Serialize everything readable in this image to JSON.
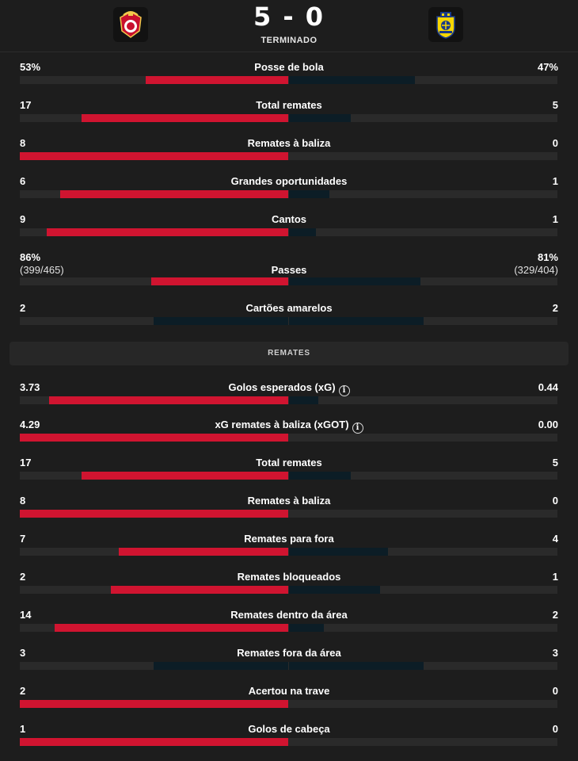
{
  "match": {
    "score": "5 - 0",
    "status": "TERMINADO",
    "home_crest_icon": "benfica-crest-icon",
    "away_crest_icon": "arouca-crest-icon"
  },
  "colors": {
    "home": "#d01430",
    "away": "#0c1d26",
    "track": "#2a2a2a"
  },
  "stats": [
    {
      "name": "Posse de bola",
      "home": "53%",
      "away": "47%",
      "home_share": 0.53,
      "away_share": 0.47
    },
    {
      "name": "Total remates",
      "home": "17",
      "away": "5",
      "home_share": 0.77,
      "away_share": 0.23
    },
    {
      "name": "Remates à baliza",
      "home": "8",
      "away": "0",
      "home_share": 1.0,
      "away_share": 0.0
    },
    {
      "name": "Grandes oportunidades",
      "home": "6",
      "away": "1",
      "home_share": 0.85,
      "away_share": 0.15
    },
    {
      "name": "Cantos",
      "home": "9",
      "away": "1",
      "home_share": 0.9,
      "away_share": 0.1
    },
    {
      "name": "Passes",
      "home": "86%",
      "away": "81%",
      "home_sub": "(399/465)",
      "away_sub": "(329/404)",
      "home_share": 0.51,
      "away_share": 0.49
    },
    {
      "name": "Cartões amarelos",
      "home": "2",
      "away": "2",
      "home_share": 0.5,
      "away_share": 0.5,
      "neutral": true
    }
  ],
  "section_title": "REMATES",
  "shots": [
    {
      "name": "Golos esperados (xG)",
      "home": "3.73",
      "away": "0.44",
      "home_share": 0.89,
      "away_share": 0.11,
      "info": true
    },
    {
      "name": "xG remates à baliza (xGOT)",
      "home": "4.29",
      "away": "0.00",
      "home_share": 1.0,
      "away_share": 0.0,
      "info": true
    },
    {
      "name": "Total remates",
      "home": "17",
      "away": "5",
      "home_share": 0.77,
      "away_share": 0.23
    },
    {
      "name": "Remates à baliza",
      "home": "8",
      "away": "0",
      "home_share": 1.0,
      "away_share": 0.0
    },
    {
      "name": "Remates para fora",
      "home": "7",
      "away": "4",
      "home_share": 0.63,
      "away_share": 0.37
    },
    {
      "name": "Remates bloqueados",
      "home": "2",
      "away": "1",
      "home_share": 0.66,
      "away_share": 0.34
    },
    {
      "name": "Remates dentro da área",
      "home": "14",
      "away": "2",
      "home_share": 0.87,
      "away_share": 0.13
    },
    {
      "name": "Remates fora da área",
      "home": "3",
      "away": "3",
      "home_share": 0.5,
      "away_share": 0.5,
      "neutral": true
    },
    {
      "name": "Acertou na trave",
      "home": "2",
      "away": "0",
      "home_share": 1.0,
      "away_share": 0.0
    },
    {
      "name": "Golos de cabeça",
      "home": "1",
      "away": "0",
      "home_share": 1.0,
      "away_share": 0.0
    }
  ]
}
